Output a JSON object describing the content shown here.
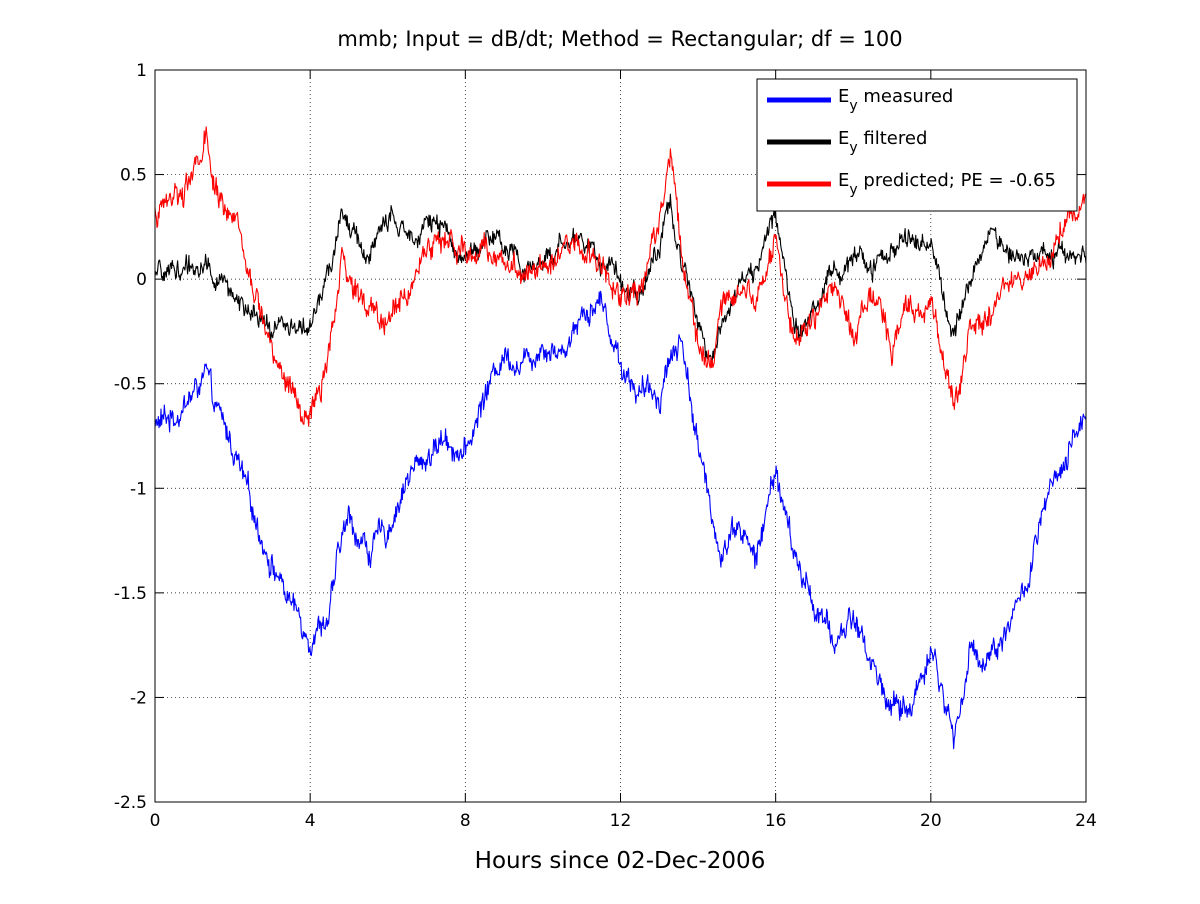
{
  "chart_data": {
    "type": "line",
    "title": "mmb; Input = dB/dt; Method = Rectangular; df = 100",
    "xlabel": "Hours since 02-Dec-2006",
    "ylabel": "",
    "xlim": [
      0,
      24
    ],
    "ylim": [
      -2.5,
      1
    ],
    "x_ticks": [
      0,
      4,
      8,
      12,
      16,
      20,
      24
    ],
    "x_tick_labels": [
      "0",
      "4",
      "8",
      "12",
      "16",
      "20",
      "24"
    ],
    "y_ticks": [
      1,
      0.5,
      0,
      -0.5,
      -1,
      -1.5,
      -2,
      -2.5
    ],
    "y_tick_labels": [
      "1",
      "0.5",
      "0",
      "-0.5",
      "-1",
      "-1.5",
      "-2",
      "-2.5"
    ],
    "grid": true,
    "grid_style": "dotted",
    "legend_position": "top-right",
    "x": [
      0,
      0.5,
      1,
      1.3,
      1.5,
      2,
      2.5,
      3,
      3.5,
      4,
      4.5,
      4.8,
      5,
      5.5,
      6,
      6.5,
      7,
      7.5,
      8,
      8.5,
      9,
      9.5,
      10,
      10.5,
      11,
      11.5,
      12,
      12.5,
      13,
      13.3,
      13.6,
      14,
      14.3,
      14.6,
      15,
      15.5,
      16,
      16.5,
      17,
      17.5,
      18,
      18.5,
      19,
      19.5,
      20,
      20.6,
      21,
      21.5,
      22,
      22.5,
      23,
      23.5,
      24
    ],
    "series": [
      {
        "name": "measured",
        "legend_main": "E",
        "legend_sub": "y",
        "legend_rest": " measured",
        "color": "#0000ff",
        "values": [
          -0.7,
          -0.65,
          -0.55,
          -0.45,
          -0.6,
          -0.8,
          -1.1,
          -1.35,
          -1.55,
          -1.7,
          -1.6,
          -1.25,
          -1.15,
          -1.3,
          -1.2,
          -0.95,
          -0.85,
          -0.75,
          -0.85,
          -0.55,
          -0.35,
          -0.4,
          -0.3,
          -0.35,
          -0.15,
          -0.1,
          -0.4,
          -0.55,
          -0.55,
          -0.35,
          -0.3,
          -0.8,
          -1.1,
          -1.3,
          -1.15,
          -1.35,
          -0.9,
          -1.35,
          -1.55,
          -1.75,
          -1.6,
          -1.85,
          -2.05,
          -2.05,
          -1.75,
          -2.2,
          -1.8,
          -1.8,
          -1.65,
          -1.45,
          -1.05,
          -0.9,
          -0.6
        ],
        "noise": 0.06,
        "stroke_width": 1.1
      },
      {
        "name": "filtered",
        "legend_main": "E",
        "legend_sub": "y",
        "legend_rest": " filtered",
        "color": "#000000",
        "values": [
          0,
          0.05,
          0.05,
          0.1,
          0,
          -0.05,
          -0.2,
          -0.25,
          -0.2,
          -0.25,
          0.05,
          0.3,
          0.25,
          0.1,
          0.3,
          0.2,
          0.3,
          0.2,
          0.1,
          0.2,
          0.15,
          0.05,
          0.1,
          0.15,
          0.2,
          0.1,
          0,
          -0.05,
          0.15,
          0.35,
          0.05,
          -0.15,
          -0.4,
          -0.2,
          -0.05,
          0.05,
          0.3,
          -0.2,
          -0.15,
          0.05,
          0.1,
          0.05,
          0.15,
          0.2,
          0.2,
          -0.3,
          0.05,
          0.2,
          0.15,
          0.1,
          0.1,
          0.15,
          0.1
        ],
        "noise": 0.05,
        "stroke_width": 1.1
      },
      {
        "name": "predicted; PE = -0.65",
        "legend_main": "E",
        "legend_sub": "y",
        "legend_rest": " predicted; PE = -0.65",
        "color": "#ff0000",
        "values": [
          0.3,
          0.4,
          0.5,
          0.65,
          0.45,
          0.3,
          -0.05,
          -0.3,
          -0.55,
          -0.7,
          -0.35,
          0.05,
          0,
          -0.15,
          -0.2,
          -0.05,
          0.15,
          0.2,
          0.1,
          0.15,
          0.1,
          0.05,
          0.1,
          0.15,
          0.15,
          0.05,
          -0.05,
          -0.05,
          0.3,
          0.6,
          0.1,
          -0.25,
          -0.45,
          -0.15,
          -0.05,
          -0.1,
          0.2,
          -0.3,
          -0.2,
          0,
          -0.3,
          -0.05,
          -0.3,
          -0.1,
          -0.1,
          -0.6,
          -0.25,
          -0.15,
          -0.05,
          0,
          0.15,
          0.25,
          0.35
        ],
        "noise": 0.06,
        "stroke_width": 1.1
      }
    ]
  }
}
